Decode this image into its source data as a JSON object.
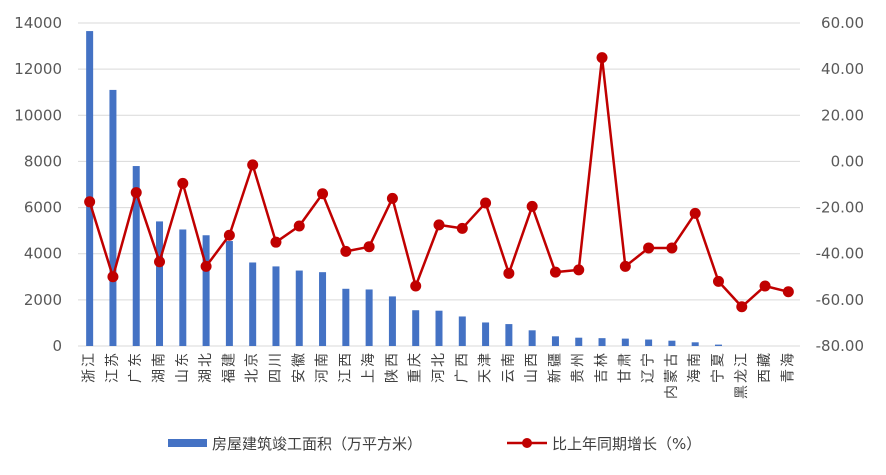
{
  "chart_data": {
    "type": "bar+line",
    "title": "",
    "categories": [
      "浙江",
      "江苏",
      "广东",
      "湖南",
      "山东",
      "湖北",
      "福建",
      "北京",
      "四川",
      "安徽",
      "河南",
      "江西",
      "上海",
      "陕西",
      "重庆",
      "河北",
      "广西",
      "天津",
      "云南",
      "山西",
      "新疆",
      "贵州",
      "吉林",
      "甘肃",
      "辽宁",
      "内蒙古",
      "海南",
      "宁夏",
      "黑龙江",
      "西藏",
      "青海"
    ],
    "series": [
      {
        "name": "房屋建筑竣工面积（万平方米）",
        "type": "bar",
        "axis": "left",
        "color": "#4472C4",
        "values": [
          13650,
          11100,
          7800,
          5400,
          5050,
          4800,
          4550,
          3620,
          3450,
          3270,
          3200,
          2480,
          2450,
          2150,
          1550,
          1530,
          1280,
          1020,
          950,
          680,
          420,
          360,
          340,
          320,
          280,
          230,
          160,
          60,
          0,
          0,
          0
        ]
      },
      {
        "name": "比上年同期增长（%）",
        "type": "line",
        "axis": "right",
        "color": "#C00000",
        "values": [
          -17.5,
          -50.0,
          -13.5,
          -43.5,
          -9.5,
          -45.5,
          -32.0,
          -1.5,
          -35.0,
          -28.0,
          -14.0,
          -39.0,
          -37.0,
          -16.0,
          -54.0,
          -27.5,
          -29.0,
          -18.0,
          -48.5,
          -19.5,
          -48.0,
          -47.0,
          45.0,
          -45.5,
          -37.5,
          -37.5,
          -22.5,
          -52.0,
          -63.0,
          -54.0,
          -56.5
        ]
      }
    ],
    "left_axis": {
      "min": 0,
      "max": 14000,
      "step": 2000,
      "ticks": [
        "0",
        "2000",
        "4000",
        "6000",
        "8000",
        "10000",
        "12000",
        "14000"
      ]
    },
    "right_axis": {
      "min": -80,
      "max": 60,
      "step": 20,
      "ticks": [
        "-80.00",
        "-60.00",
        "-40.00",
        "-20.00",
        "0.00",
        "20.00",
        "40.00",
        "60.00"
      ]
    },
    "grid": true,
    "legend_position": "bottom"
  }
}
